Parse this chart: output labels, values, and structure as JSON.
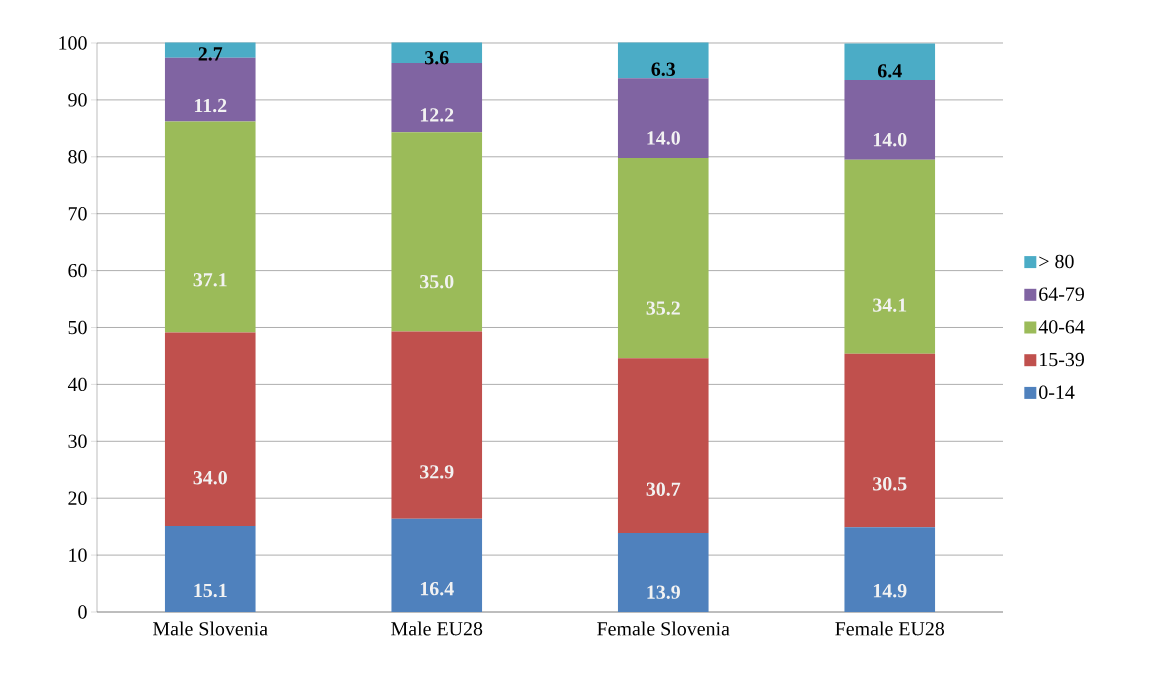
{
  "chart_data": {
    "type": "bar",
    "stacked": true,
    "categories": [
      "Male Slovenia",
      "Male EU28",
      "Female Slovenia",
      "Female EU28"
    ],
    "series": [
      {
        "name": "0-14",
        "color": "#4f81bd",
        "values": [
          15.1,
          16.4,
          13.9,
          14.9
        ],
        "value_labels": [
          "15.1",
          "16.4",
          "13.9",
          "14.9"
        ]
      },
      {
        "name": "15-39",
        "color": "#c0504d",
        "values": [
          34.0,
          32.9,
          30.7,
          30.5
        ],
        "value_labels": [
          "34.0",
          "32.9",
          "30.7",
          "30.5"
        ]
      },
      {
        "name": "40-64",
        "color": "#9bbb59",
        "values": [
          37.1,
          35.0,
          35.2,
          34.1
        ],
        "value_labels": [
          "37.1",
          "35.0",
          "35.2",
          "34.1"
        ]
      },
      {
        "name": "64-79",
        "color": "#8064a2",
        "values": [
          11.2,
          12.2,
          14.0,
          14.0
        ],
        "value_labels": [
          "11.2",
          "12.2",
          "14.0",
          "14.0"
        ]
      },
      {
        "name": "> 80",
        "color": "#4bacc6",
        "values": [
          2.7,
          3.6,
          6.3,
          6.4
        ],
        "value_labels": [
          "2.7",
          "3.6",
          "6.3",
          "6.4"
        ]
      }
    ],
    "ylim": [
      0,
      100
    ],
    "yticks": [
      0,
      10,
      20,
      30,
      40,
      50,
      60,
      70,
      80,
      90,
      100
    ],
    "grid": "y",
    "legend": "right"
  }
}
